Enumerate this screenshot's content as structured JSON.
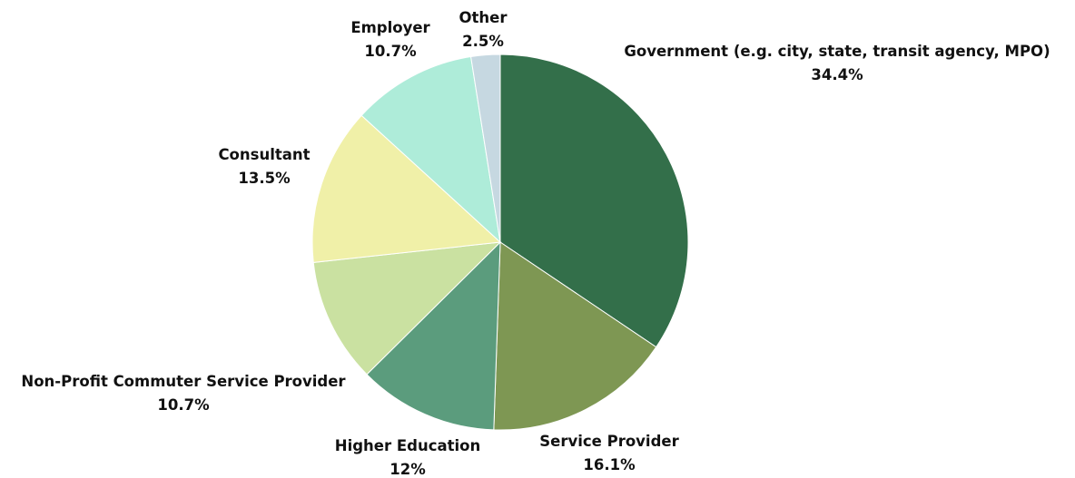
{
  "chart_data": {
    "type": "pie",
    "title": "",
    "start_angle_deg": 0,
    "direction": "clockwise",
    "slices": [
      {
        "label": "Government (e.g. city, state, transit agency, MPO)",
        "value_label": "34.4%",
        "value": 34.4,
        "color": "#336f4a"
      },
      {
        "label": "Service Provider",
        "value_label": "16.1%",
        "value": 16.1,
        "color": "#7e9753"
      },
      {
        "label": "Higher Education",
        "value_label": "12%",
        "value": 12,
        "color": "#5b9c7d"
      },
      {
        "label": "Non-Profit Commuter Service Provider",
        "value_label": "10.7%",
        "value": 10.7,
        "color": "#cae1a1"
      },
      {
        "label": "Consultant",
        "value_label": "13.5%",
        "value": 13.5,
        "color": "#f0f0a8"
      },
      {
        "label": "Employer",
        "value_label": "10.7%",
        "value": 10.7,
        "color": "#aeecd9"
      },
      {
        "label": "Other",
        "value_label": "2.5%",
        "value": 2.5,
        "color": "#c6d8e1"
      }
    ]
  }
}
